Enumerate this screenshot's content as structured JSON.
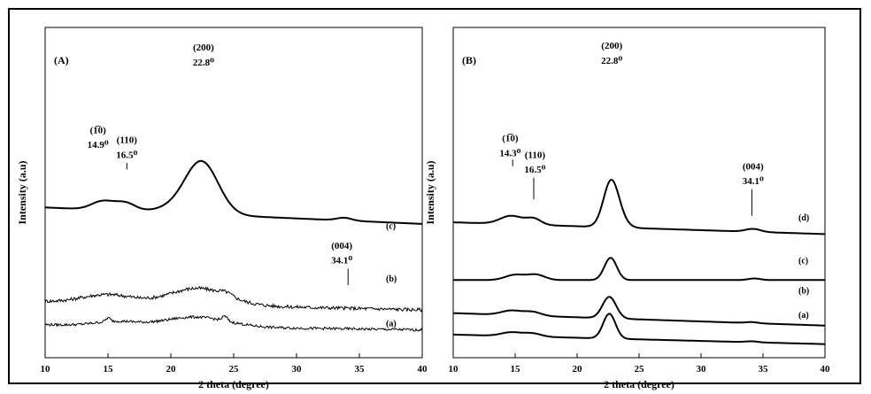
{
  "chart_data": [
    {
      "panel": "(A)",
      "type": "line",
      "xlabel": "2 theta (degree)",
      "ylabel": "Intensity (a.u)",
      "xlim": [
        10,
        40
      ],
      "xticks": [
        10,
        15,
        20,
        25,
        30,
        35,
        40
      ],
      "grid": false,
      "annotations": [
        {
          "text": "(200)",
          "value": "22.8⁰",
          "x": 22.8
        },
        {
          "text": "(1̅0)",
          "value": "14.9⁰",
          "x": 14.9
        },
        {
          "text": "(110)",
          "value": "16.5⁰",
          "x": 16.5
        },
        {
          "text": "(004)",
          "value": "34.1⁰",
          "x": 34.1
        }
      ],
      "series": [
        {
          "name": "(c)",
          "color": "#000000",
          "noise": 0.0,
          "base": 0.5,
          "slope": 0.01,
          "peaks": [
            [
              14.6,
              0.9,
              0.16
            ],
            [
              16.4,
              0.8,
              0.14
            ],
            [
              22.5,
              1.3,
              0.9
            ],
            [
              20.8,
              1.6,
              0.12
            ],
            [
              33.8,
              0.6,
              0.05
            ]
          ]
        },
        {
          "name": "(b)",
          "color": "#000000",
          "noise": 0.025,
          "base": 0.22,
          "slope": 0.006,
          "peaks": [
            [
              15.0,
              2.0,
              0.18
            ],
            [
              22.2,
              2.3,
              0.36
            ],
            [
              24.4,
              0.5,
              0.07
            ]
          ]
        },
        {
          "name": "(a)",
          "color": "#000000",
          "noise": 0.025,
          "base": 0.08,
          "slope": 0.005,
          "peaks": [
            [
              15.0,
              0.18,
              0.1
            ],
            [
              15.6,
              1.6,
              0.12
            ],
            [
              22.0,
              2.5,
              0.28
            ],
            [
              24.3,
              0.2,
              0.13
            ]
          ]
        }
      ]
    },
    {
      "panel": "(B)",
      "type": "line",
      "xlabel": "2 theta (degree)",
      "ylabel": "Intensity (a.u)",
      "xlim": [
        10,
        40
      ],
      "xticks": [
        10,
        15,
        20,
        25,
        30,
        35,
        40
      ],
      "grid": false,
      "annotations": [
        {
          "text": "(200)",
          "value": "22.8⁰",
          "x": 22.8
        },
        {
          "text": "(1̅0)",
          "value": "14.3⁰",
          "x": 14.8
        },
        {
          "text": "(110)",
          "value": "16.5⁰",
          "x": 16.5
        },
        {
          "text": "(004)",
          "value": "34.1⁰",
          "x": 34.1
        }
      ],
      "series": [
        {
          "name": "(d)",
          "color": "#000000",
          "noise": 0.0,
          "base": 0.6,
          "slope": 0.008,
          "peaks": [
            [
              14.7,
              0.9,
              0.17
            ],
            [
              16.5,
              0.6,
              0.12
            ],
            [
              22.7,
              0.6,
              0.75
            ],
            [
              23.1,
              0.7,
              0.25
            ],
            [
              34.2,
              0.6,
              0.06
            ]
          ]
        },
        {
          "name": "(c)",
          "color": "#000000",
          "noise": 0.0,
          "base": 0.34,
          "slope": 0.0,
          "peaks": [
            [
              15.0,
              0.8,
              0.13
            ],
            [
              16.7,
              0.7,
              0.13
            ],
            [
              22.7,
              0.5,
              0.55
            ],
            [
              34.3,
              0.5,
              0.04
            ]
          ]
        },
        {
          "name": "(b)",
          "color": "#000000",
          "noise": 0.0,
          "base": 0.2,
          "slope": 0.012,
          "peaks": [
            [
              14.7,
              0.8,
              0.13
            ],
            [
              16.4,
              0.7,
              0.11
            ],
            [
              22.6,
              0.55,
              0.62
            ],
            [
              34.1,
              0.5,
              0.03
            ]
          ]
        },
        {
          "name": "(a)",
          "color": "#000000",
          "noise": 0.0,
          "base": 0.12,
          "slope": 0.01,
          "peaks": [
            [
              14.7,
              0.8,
              0.12
            ],
            [
              16.4,
              0.7,
              0.1
            ],
            [
              22.6,
              0.5,
              0.78
            ],
            [
              34.1,
              0.5,
              0.03
            ]
          ]
        }
      ]
    }
  ]
}
